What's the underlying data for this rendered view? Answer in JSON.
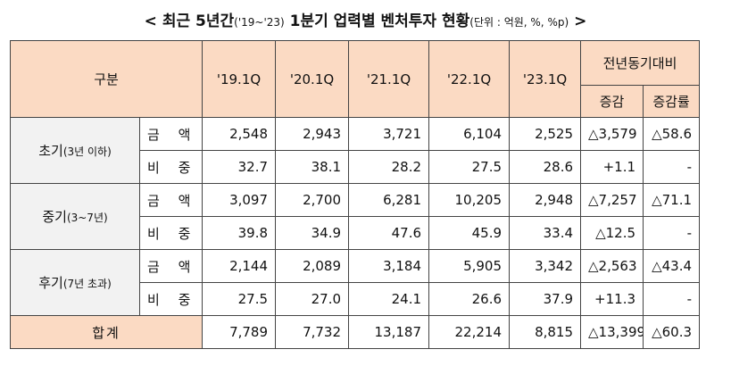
{
  "title": {
    "prefix": "<",
    "main": "최근 5년간",
    "range": "('19~'23)",
    "main2": "1분기 업력별 벤처투자 현황",
    "unit": "(단위 : 억원, %, %p)",
    "suffix": ">"
  },
  "header": {
    "category": "구분",
    "years": [
      "'19.1Q",
      "'20.1Q",
      "'21.1Q",
      "'22.1Q",
      "'23.1Q"
    ],
    "yoy": "전년동기대비",
    "change": "증감",
    "change_rate": "증감률"
  },
  "groups": [
    {
      "name": "초기",
      "sub": "(3년 이하)",
      "rows": [
        {
          "label": "금 액",
          "values": [
            "2,548",
            "2,943",
            "3,721",
            "6,104",
            "2,525"
          ],
          "change": "△3,579",
          "rate": "△58.6"
        },
        {
          "label": "비 중",
          "values": [
            "32.7",
            "38.1",
            "28.2",
            "27.5",
            "28.6"
          ],
          "change": "+1.1",
          "rate": "-"
        }
      ]
    },
    {
      "name": "중기",
      "sub": "(3~7년)",
      "rows": [
        {
          "label": "금 액",
          "values": [
            "3,097",
            "2,700",
            "6,281",
            "10,205",
            "2,948"
          ],
          "change": "△7,257",
          "rate": "△71.1"
        },
        {
          "label": "비 중",
          "values": [
            "39.8",
            "34.9",
            "47.6",
            "45.9",
            "33.4"
          ],
          "change": "△12.5",
          "rate": "-"
        }
      ]
    },
    {
      "name": "후기",
      "sub": "(7년 초과)",
      "rows": [
        {
          "label": "금 액",
          "values": [
            "2,144",
            "2,089",
            "3,184",
            "5,905",
            "3,342"
          ],
          "change": "△2,563",
          "rate": "△43.4"
        },
        {
          "label": "비 중",
          "values": [
            "27.5",
            "27.0",
            "24.1",
            "26.6",
            "37.9"
          ],
          "change": "+11.3",
          "rate": "-"
        }
      ]
    }
  ],
  "total": {
    "label": "합계",
    "values": [
      "7,789",
      "7,732",
      "13,187",
      "22,214",
      "8,815"
    ],
    "change": "△13,399",
    "rate": "△60.3"
  }
}
